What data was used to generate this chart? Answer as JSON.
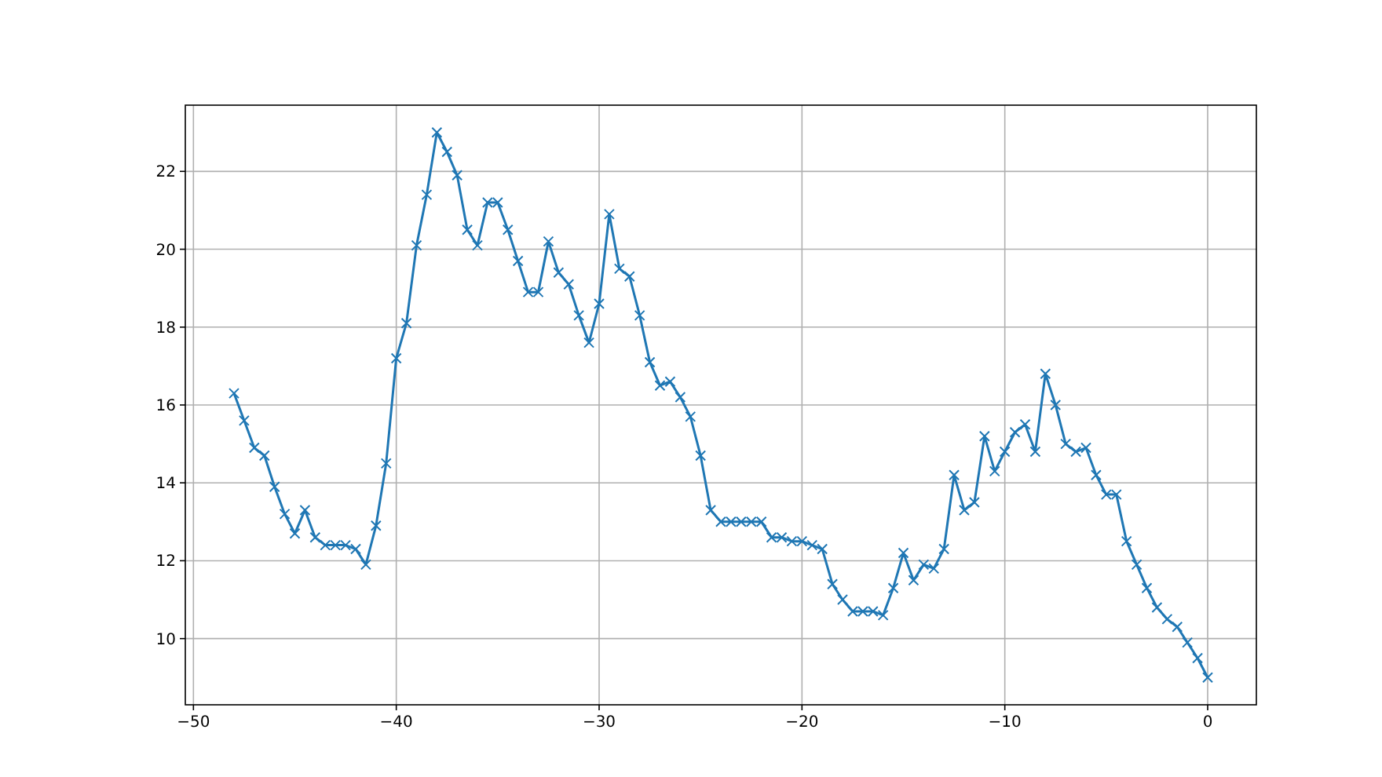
{
  "chart_data": {
    "type": "line",
    "marker": "cross",
    "grid": true,
    "x": [
      -48,
      -47.5,
      -47,
      -46.5,
      -46,
      -45.5,
      -45,
      -44.5,
      -44,
      -43.5,
      -43,
      -42.5,
      -42,
      -41.5,
      -41,
      -40.5,
      -40,
      -39.5,
      -39,
      -38.5,
      -38,
      -37.5,
      -37,
      -36.5,
      -36,
      -35.5,
      -35,
      -34.5,
      -34,
      -33.5,
      -33,
      -32.5,
      -32,
      -31.5,
      -31,
      -30.5,
      -30,
      -29.5,
      -29,
      -28.5,
      -28,
      -27.5,
      -27,
      -26.5,
      -26,
      -25.5,
      -25,
      -24.5,
      -24,
      -23.5,
      -23,
      -22.5,
      -22,
      -21.5,
      -21,
      -20.5,
      -20,
      -19.5,
      -19,
      -18.5,
      -18,
      -17.5,
      -17,
      -16.5,
      -16,
      -15.5,
      -15,
      -14.5,
      -14,
      -13.5,
      -13,
      -12.5,
      -12,
      -11.5,
      -11,
      -10.5,
      -10,
      -9.5,
      -9,
      -8.5,
      -8,
      -7.5,
      -7,
      -6.5,
      -6,
      -5.5,
      -5,
      -4.5,
      -4,
      -3.5,
      -3,
      -2.5,
      -2,
      -1.5,
      -1,
      -0.5,
      0
    ],
    "series": [
      {
        "color": "#1f77b4",
        "values": [
          16.3,
          15.6,
          14.9,
          14.7,
          13.9,
          13.2,
          12.7,
          13.3,
          12.6,
          12.4,
          12.4,
          12.4,
          12.3,
          11.9,
          12.9,
          14.5,
          17.2,
          18.1,
          20.1,
          21.4,
          23.0,
          22.5,
          21.9,
          20.5,
          20.1,
          21.2,
          21.2,
          20.5,
          19.7,
          18.9,
          18.9,
          20.2,
          19.4,
          19.1,
          18.3,
          17.6,
          18.6,
          20.9,
          19.5,
          19.3,
          18.3,
          17.1,
          16.5,
          16.6,
          16.2,
          15.7,
          14.7,
          13.3,
          13.0,
          13.0,
          13.0,
          13.0,
          13.0,
          12.6,
          12.6,
          12.5,
          12.5,
          12.4,
          12.3,
          11.4,
          11.0,
          10.7,
          10.7,
          10.7,
          10.6,
          11.3,
          12.2,
          11.5,
          11.9,
          11.8,
          12.3,
          14.2,
          13.3,
          13.5,
          15.2,
          14.3,
          14.8,
          15.3,
          15.5,
          14.8,
          16.8,
          16.0,
          15.0,
          14.8,
          14.9,
          14.2,
          13.7,
          13.7,
          12.5,
          11.9,
          11.3,
          10.8,
          10.5,
          10.3,
          9.9,
          9.5,
          9.0
        ]
      }
    ],
    "xlim": [
      -50.4,
      2.4
    ],
    "ylim": [
      8.3,
      23.7
    ],
    "xticks": [
      {
        "value": -50,
        "label": "−50"
      },
      {
        "value": -40,
        "label": "−40"
      },
      {
        "value": -30,
        "label": "−30"
      },
      {
        "value": -20,
        "label": "−20"
      },
      {
        "value": -10,
        "label": "−10"
      },
      0
    ],
    "yticks": [
      10,
      12,
      14,
      16,
      18,
      20,
      22
    ]
  }
}
